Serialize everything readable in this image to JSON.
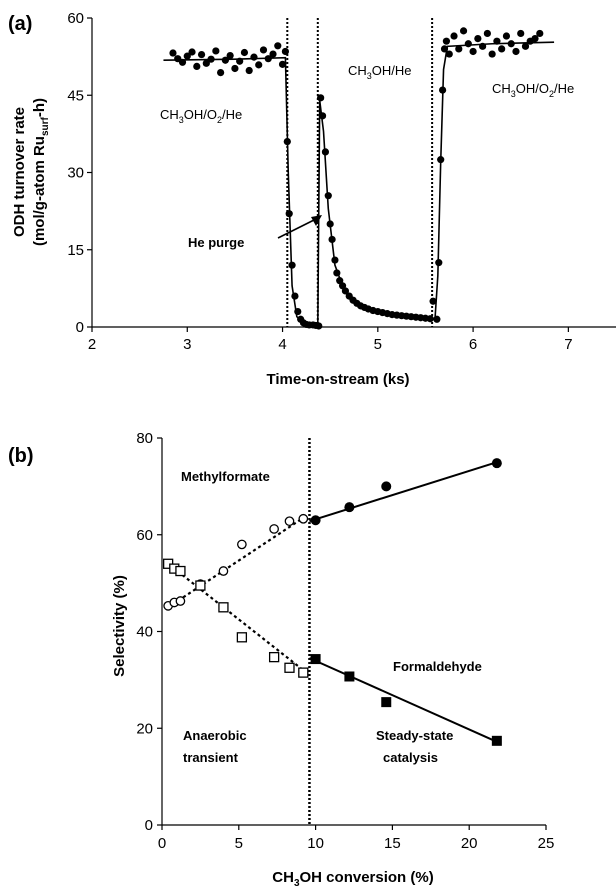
{
  "chart_data": [
    {
      "panel": "(a)",
      "type": "scatter",
      "xlabel": "Time-on-stream (ks)",
      "ylabel_line1": "ODH turnover rate",
      "ylabel_line2": "(mol/g-atom Ru",
      "ylabel_sub": "surf",
      "ylabel_end": "-h)",
      "xlim": [
        2,
        7.5
      ],
      "ylim": [
        0,
        60
      ],
      "xticks": [
        "2",
        "3",
        "4",
        "5",
        "6",
        "7"
      ],
      "yticks": [
        "0",
        "15",
        "30",
        "45",
        "60"
      ],
      "vlines": [
        4.05,
        4.37,
        5.57
      ],
      "annotations": {
        "region1": {
          "a": "CH",
          "s1": "3",
          "b": "OH/O",
          "s2": "2",
          "c": "/He"
        },
        "region2": {
          "a": "CH",
          "s1": "3",
          "b": "OH/He"
        },
        "region3": {
          "a": "CH",
          "s1": "3",
          "b": "OH/O",
          "s2": "2",
          "c": "/He"
        },
        "purge": "He purge"
      },
      "series": [
        {
          "points": [
            [
              2.85,
              53.2
            ],
            [
              2.9,
              52.1
            ],
            [
              2.95,
              51.4
            ],
            [
              3.0,
              52.6
            ],
            [
              3.05,
              53.4
            ],
            [
              3.1,
              50.6
            ],
            [
              3.15,
              52.9
            ],
            [
              3.2,
              51.2
            ],
            [
              3.25,
              52.0
            ],
            [
              3.3,
              53.6
            ],
            [
              3.35,
              49.4
            ],
            [
              3.4,
              51.8
            ],
            [
              3.45,
              52.7
            ],
            [
              3.5,
              50.2
            ],
            [
              3.55,
              51.6
            ],
            [
              3.6,
              53.3
            ],
            [
              3.65,
              49.8
            ],
            [
              3.7,
              52.4
            ],
            [
              3.75,
              50.9
            ],
            [
              3.8,
              53.8
            ],
            [
              3.85,
              52.1
            ],
            [
              3.9,
              53.0
            ],
            [
              3.95,
              54.6
            ],
            [
              4.0,
              51.0
            ],
            [
              4.03,
              53.5
            ],
            [
              4.05,
              36.0
            ],
            [
              4.07,
              22.0
            ],
            [
              4.1,
              12.0
            ],
            [
              4.13,
              6.0
            ],
            [
              4.16,
              3.0
            ],
            [
              4.19,
              1.5
            ],
            [
              4.22,
              0.8
            ],
            [
              4.25,
              0.5
            ],
            [
              4.28,
              0.4
            ],
            [
              4.32,
              0.4
            ],
            [
              4.35,
              0.3
            ],
            [
              4.38,
              0.2
            ],
            [
              4.4,
              44.5
            ],
            [
              4.42,
              41.0
            ],
            [
              4.45,
              34.0
            ],
            [
              4.48,
              25.5
            ],
            [
              4.5,
              20.0
            ],
            [
              4.52,
              17.0
            ],
            [
              4.55,
              13.0
            ],
            [
              4.57,
              10.5
            ],
            [
              4.6,
              9.0
            ],
            [
              4.63,
              8.0
            ],
            [
              4.66,
              7.0
            ],
            [
              4.7,
              6.0
            ],
            [
              4.74,
              5.2
            ],
            [
              4.78,
              4.6
            ],
            [
              4.82,
              4.1
            ],
            [
              4.86,
              3.8
            ],
            [
              4.9,
              3.5
            ],
            [
              4.95,
              3.2
            ],
            [
              5.0,
              3.0
            ],
            [
              5.05,
              2.8
            ],
            [
              5.1,
              2.6
            ],
            [
              5.15,
              2.4
            ],
            [
              5.2,
              2.3
            ],
            [
              5.25,
              2.2
            ],
            [
              5.3,
              2.1
            ],
            [
              5.35,
              2.0
            ],
            [
              5.4,
              1.9
            ],
            [
              5.45,
              1.8
            ],
            [
              5.5,
              1.7
            ],
            [
              5.55,
              1.6
            ],
            [
              5.58,
              5.0
            ],
            [
              5.62,
              1.5
            ],
            [
              5.64,
              12.5
            ],
            [
              5.66,
              32.5
            ],
            [
              5.68,
              46.0
            ],
            [
              5.7,
              54.0
            ],
            [
              5.72,
              55.5
            ],
            [
              5.75,
              53.0
            ],
            [
              5.8,
              56.5
            ],
            [
              5.85,
              54.0
            ],
            [
              5.9,
              57.5
            ],
            [
              5.95,
              55.0
            ],
            [
              6.0,
              53.5
            ],
            [
              6.05,
              56.0
            ],
            [
              6.1,
              54.5
            ],
            [
              6.15,
              57.0
            ],
            [
              6.2,
              53.0
            ],
            [
              6.25,
              55.5
            ],
            [
              6.3,
              54.0
            ],
            [
              6.35,
              56.5
            ],
            [
              6.4,
              55.0
            ],
            [
              6.45,
              53.5
            ],
            [
              6.5,
              57.0
            ],
            [
              6.55,
              54.5
            ],
            [
              6.6,
              55.5
            ],
            [
              6.65,
              56.0
            ],
            [
              6.7,
              57.0
            ]
          ],
          "fit_line": [
            [
              2.75,
              51.8
            ],
            [
              3.5,
              52.0
            ],
            [
              4.03,
              52.3
            ],
            [
              4.06,
              30.0
            ],
            [
              4.1,
              8.0
            ],
            [
              4.15,
              2.0
            ],
            [
              4.25,
              0.4
            ],
            [
              4.37,
              0.3
            ],
            [
              4.39,
              44.0
            ],
            [
              4.43,
              38.0
            ],
            [
              4.48,
              23.0
            ],
            [
              4.55,
              12.0
            ],
            [
              4.65,
              7.0
            ],
            [
              4.8,
              4.2
            ],
            [
              5.0,
              3.0
            ],
            [
              5.3,
              2.0
            ],
            [
              5.6,
              1.5
            ],
            [
              5.63,
              10.0
            ],
            [
              5.66,
              32.0
            ],
            [
              5.69,
              50.0
            ],
            [
              5.73,
              54.5
            ],
            [
              6.2,
              55.0
            ],
            [
              6.85,
              55.3
            ]
          ]
        }
      ]
    },
    {
      "panel": "(b)",
      "type": "scatter",
      "xlabel_a": "CH",
      "xlabel_sub": "3",
      "xlabel_b": "OH conversion (%)",
      "ylabel": "Selectivity (%)",
      "xlim": [
        0,
        25
      ],
      "ylim": [
        0,
        80
      ],
      "xticks": [
        "0",
        "5",
        "10",
        "15",
        "20",
        "25"
      ],
      "yticks": [
        "0",
        "20",
        "40",
        "60",
        "80"
      ],
      "vline": 9.6,
      "annotations": {
        "methylformate": "Methylformate",
        "formaldehyde": "Formaldehyde",
        "anaerobic_1": "Anaerobic",
        "anaerobic_2": "transient",
        "steady_1": "Steady-state",
        "steady_2": "catalysis"
      },
      "series": [
        {
          "marker": "open-circle",
          "points": [
            [
              0.4,
              45.3
            ],
            [
              0.8,
              46.0
            ],
            [
              1.2,
              46.3
            ],
            [
              2.5,
              49.8
            ],
            [
              4.0,
              52.5
            ],
            [
              5.2,
              58.0
            ],
            [
              7.3,
              61.2
            ],
            [
              8.3,
              62.8
            ],
            [
              9.2,
              63.3
            ]
          ],
          "fit_line": [
            [
              0.4,
              45.0
            ],
            [
              9.2,
              63.5
            ]
          ]
        },
        {
          "marker": "filled-circle",
          "points": [
            [
              10.0,
              63.0
            ],
            [
              12.2,
              65.7
            ],
            [
              14.6,
              70.0
            ],
            [
              21.8,
              74.8
            ]
          ],
          "fit_line": [
            [
              9.6,
              62.8
            ],
            [
              21.8,
              75.0
            ]
          ]
        },
        {
          "marker": "open-square",
          "points": [
            [
              0.4,
              54.0
            ],
            [
              0.8,
              53.0
            ],
            [
              1.2,
              52.5
            ],
            [
              2.5,
              49.5
            ],
            [
              4.0,
              45.0
            ],
            [
              5.2,
              38.8
            ],
            [
              7.3,
              34.7
            ],
            [
              8.3,
              32.5
            ],
            [
              9.2,
              31.5
            ]
          ],
          "fit_line": [
            [
              0.4,
              54.0
            ],
            [
              9.4,
              31.5
            ]
          ]
        },
        {
          "marker": "filled-square",
          "points": [
            [
              10.0,
              34.3
            ],
            [
              12.2,
              30.7
            ],
            [
              14.6,
              25.4
            ],
            [
              21.8,
              17.4
            ]
          ],
          "fit_line": [
            [
              9.6,
              34.5
            ],
            [
              21.8,
              17.2
            ]
          ]
        }
      ]
    }
  ]
}
